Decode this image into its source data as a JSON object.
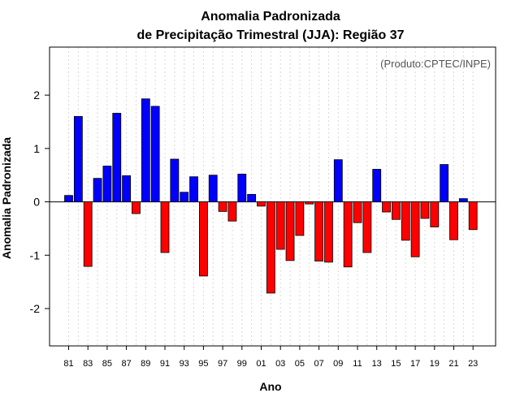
{
  "chart_data": {
    "type": "bar",
    "title": "Anomalia Padronizada",
    "subtitle": "de Precipitação Trimestral (JJA): Região 37",
    "xlabel": "Ano",
    "ylabel": "Anomalia Padronizada",
    "credit": "(Produto:CPTEC/INPE)",
    "ylim": [
      -2.7,
      2.9
    ],
    "yticks": [
      -2,
      -1,
      0,
      1,
      2
    ],
    "grid": true,
    "positive_color": "#0000ff",
    "negative_color": "#ff0000",
    "years": [
      1981,
      1982,
      1983,
      1984,
      1985,
      1986,
      1987,
      1988,
      1989,
      1990,
      1991,
      1992,
      1993,
      1994,
      1995,
      1996,
      1997,
      1998,
      1999,
      2000,
      2001,
      2002,
      2003,
      2004,
      2005,
      2006,
      2007,
      2008,
      2009,
      2010,
      2011,
      2012,
      2013,
      2014,
      2015,
      2016,
      2017,
      2018,
      2019,
      2020,
      2021,
      2022,
      2023
    ],
    "categories": [
      "81",
      "82",
      "83",
      "84",
      "85",
      "86",
      "87",
      "88",
      "89",
      "90",
      "91",
      "92",
      "93",
      "94",
      "95",
      "96",
      "97",
      "98",
      "99",
      "00",
      "01",
      "02",
      "03",
      "04",
      "05",
      "06",
      "07",
      "08",
      "09",
      "10",
      "11",
      "12",
      "13",
      "14",
      "15",
      "16",
      "17",
      "18",
      "19",
      "20",
      "21",
      "22",
      "23"
    ],
    "tick_labels": [
      "81",
      "83",
      "85",
      "87",
      "89",
      "91",
      "93",
      "95",
      "97",
      "99",
      "01",
      "03",
      "05",
      "07",
      "09",
      "11",
      "13",
      "15",
      "17",
      "19",
      "21",
      "23"
    ],
    "values": [
      0.12,
      1.6,
      -1.21,
      0.44,
      0.67,
      1.66,
      0.49,
      -0.22,
      1.93,
      1.79,
      -0.95,
      0.8,
      0.18,
      0.47,
      -1.39,
      0.5,
      -0.18,
      -0.36,
      0.52,
      0.14,
      -0.08,
      -1.71,
      -0.89,
      -1.1,
      -0.63,
      -0.04,
      -1.11,
      -1.13,
      0.79,
      -1.22,
      -0.39,
      -0.95,
      0.61,
      -0.19,
      -0.33,
      -0.72,
      -1.03,
      -0.31,
      -0.47,
      0.7,
      -0.71,
      0.06,
      -0.52
    ]
  }
}
